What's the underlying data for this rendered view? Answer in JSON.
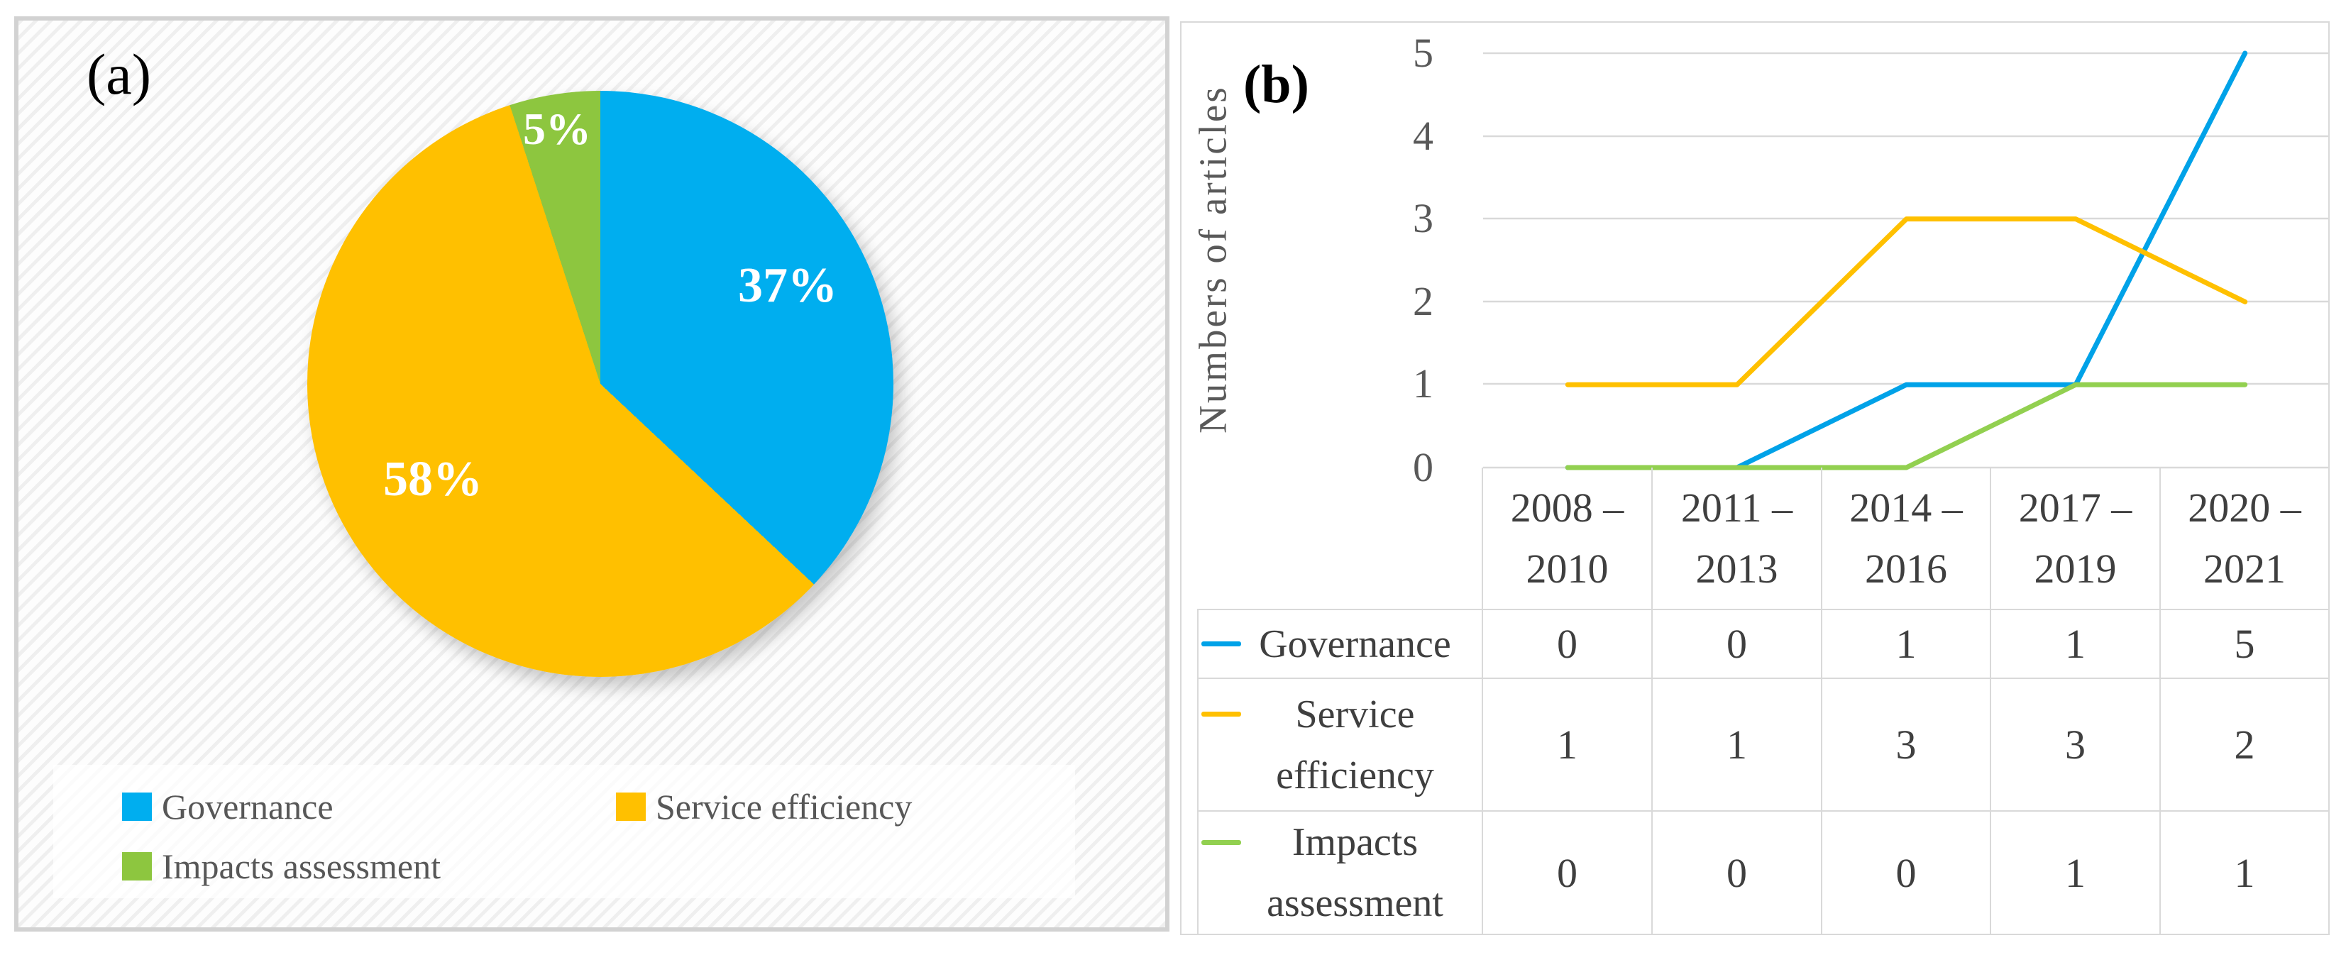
{
  "chart_data": [
    {
      "id": "pie_publication_focus",
      "type": "pie",
      "panel_label": "(a)",
      "labels": [
        "Governance",
        "Service efficiency",
        "Impacts assessment"
      ],
      "values": [
        37,
        58,
        5
      ],
      "data_labels": [
        "37%",
        "58%",
        "5%"
      ],
      "colors": [
        "#00AEEF",
        "#FFC000",
        "#8DC63F"
      ],
      "start_angle_deg": 0,
      "direction": "clockwise",
      "legend_position": "bottom-left"
    },
    {
      "id": "line_articles_over_time",
      "type": "line",
      "panel_label": "(b)",
      "ylabel": "Numbers of articles",
      "xlabel": "",
      "ylim": [
        0,
        5
      ],
      "y_ticks": [
        "5",
        "4",
        "3",
        "2",
        "1",
        "0"
      ],
      "grid": "horizontal",
      "legend_position": "table-left",
      "categories": [
        "2008 – 2010",
        "2011 – 2013",
        "2014 – 2016",
        "2017 – 2019",
        "2020 – 2021"
      ],
      "categories_2line": [
        {
          "l1": "2008 –",
          "l2": "2010"
        },
        {
          "l1": "2011 –",
          "l2": "2013"
        },
        {
          "l1": "2014 –",
          "l2": "2016"
        },
        {
          "l1": "2017 –",
          "l2": "2019"
        },
        {
          "l1": "2020 –",
          "l2": "2021"
        }
      ],
      "series": [
        {
          "name": "Governance",
          "name_lines": [
            "Governance"
          ],
          "values": [
            0,
            0,
            1,
            1,
            5
          ],
          "color": "#00A2E8"
        },
        {
          "name": "Service efficiency",
          "name_lines": [
            "Service",
            "efficiency"
          ],
          "values": [
            1,
            1,
            3,
            3,
            2
          ],
          "color": "#FFC000"
        },
        {
          "name": "Impacts assessment",
          "name_lines": [
            "Impacts",
            "assessment"
          ],
          "values": [
            0,
            0,
            0,
            1,
            1
          ],
          "color": "#92D050"
        }
      ]
    }
  ]
}
